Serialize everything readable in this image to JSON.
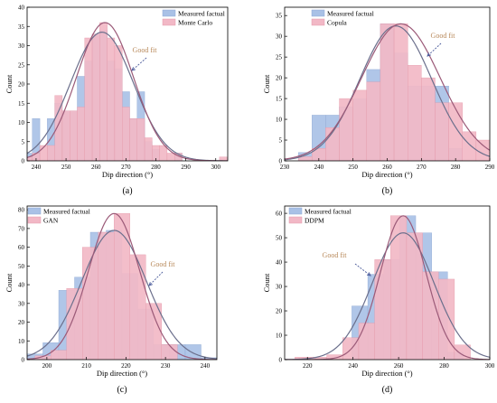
{
  "colors": {
    "measured_fill": "#a9c1e6",
    "measured_stroke": "#8fa8d3",
    "model_fill": "#f2b8c6",
    "model_stroke": "#e59aaa",
    "measured_curve": "#6b6f8c",
    "model_curve": "#9b5a78",
    "annotation": "#b8895a",
    "arrow": "#4a5a9a",
    "axis": "#000000"
  },
  "chart_data": [
    {
      "type": "bar",
      "panel_label": "(a)",
      "xlabel": "Dip direction (°)",
      "ylabel": "Count",
      "xlim": [
        237,
        304
      ],
      "ylim": [
        0,
        40
      ],
      "xticks": [
        240,
        250,
        260,
        270,
        280,
        290,
        300
      ],
      "yticks": [
        0,
        5,
        10,
        15,
        20,
        25,
        30,
        35,
        40
      ],
      "bin_width": 2.5,
      "series": [
        {
          "name": "Measured factual",
          "role": "measured",
          "x": [
            237.5,
            240,
            242.5,
            245,
            247.5,
            250,
            252.5,
            255,
            257.5,
            260,
            262.5,
            265,
            267.5,
            270,
            272.5,
            275,
            277.5,
            280,
            282.5,
            285,
            287.5,
            290,
            292.5,
            295,
            297.5,
            300,
            302.5
          ],
          "values": [
            2,
            11,
            0,
            11,
            15,
            13,
            13,
            22,
            26,
            33,
            34,
            26,
            24,
            18,
            11,
            18,
            5,
            3,
            0,
            0,
            2,
            0,
            0,
            0,
            0,
            0,
            0
          ]
        },
        {
          "name": "Monte Carlo",
          "role": "model",
          "x": [
            237.5,
            240,
            242.5,
            245,
            247.5,
            250,
            252.5,
            255,
            257.5,
            260,
            262.5,
            265,
            267.5,
            270,
            272.5,
            275,
            277.5,
            280,
            282.5,
            285,
            287.5,
            290,
            292.5,
            295,
            297.5,
            300,
            302.5
          ],
          "values": [
            1,
            2,
            4,
            4,
            17,
            13,
            13,
            14,
            32,
            33,
            36,
            32,
            30,
            14,
            11,
            11,
            6,
            4,
            4,
            2,
            2,
            0,
            0,
            0,
            0,
            0,
            1
          ]
        }
      ],
      "fit_curves": [
        {
          "role": "measured",
          "mean": 262,
          "sd": 10.5,
          "peak": 33.5
        },
        {
          "role": "model",
          "mean": 263,
          "sd": 9.5,
          "peak": 36
        }
      ],
      "annotation": "Good fit"
    },
    {
      "type": "bar",
      "panel_label": "(b)",
      "xlabel": "Dip direction (°)",
      "ylabel": "Count",
      "xlim": [
        230,
        290
      ],
      "ylim": [
        0,
        37
      ],
      "xticks": [
        230,
        240,
        250,
        260,
        270,
        280,
        290
      ],
      "yticks": [
        0,
        5,
        10,
        15,
        20,
        25,
        30,
        35
      ],
      "bin_width": 4,
      "series": [
        {
          "name": "Measured factual",
          "role": "measured",
          "x": [
            236,
            240,
            244,
            248,
            252,
            256,
            260,
            264,
            268,
            272,
            276,
            280,
            284
          ],
          "values": [
            2,
            11,
            11,
            13,
            15,
            22,
            33,
            26,
            18,
            18,
            18,
            3,
            0
          ]
        },
        {
          "name": "Copula",
          "role": "model",
          "x": [
            236,
            240,
            244,
            248,
            252,
            256,
            260,
            264,
            268,
            272,
            276,
            280,
            284,
            288
          ],
          "values": [
            1,
            3,
            8,
            15,
            17,
            19,
            33,
            33,
            23,
            20,
            14,
            14,
            7,
            5
          ]
        }
      ],
      "fit_curves": [
        {
          "role": "measured",
          "mean": 262.5,
          "sd": 10.5,
          "peak": 32.5
        },
        {
          "role": "model",
          "mean": 264,
          "sd": 11.5,
          "peak": 33
        }
      ],
      "annotation": "Good fit"
    },
    {
      "type": "bar",
      "panel_label": "(c)",
      "xlabel": "Dip direction (°)",
      "ylabel": "Count",
      "xlim": [
        195,
        243
      ],
      "ylim": [
        0,
        82
      ],
      "xticks": [
        200,
        210,
        220,
        230,
        240
      ],
      "yticks": [
        0,
        10,
        20,
        30,
        40,
        50,
        60,
        70,
        80
      ],
      "bin_width": 4,
      "series": [
        {
          "name": "Measured factual",
          "role": "measured",
          "x": [
            197,
            201,
            205,
            209,
            213,
            217,
            221,
            225,
            229,
            233,
            237,
            241
          ],
          "values": [
            3,
            9,
            37,
            44,
            68,
            69,
            46,
            27,
            8,
            8,
            8,
            1
          ]
        },
        {
          "name": "GAN",
          "role": "model",
          "x": [
            199,
            203,
            207,
            211,
            215,
            219,
            223,
            227,
            231
          ],
          "values": [
            2,
            5,
            38,
            60,
            68,
            78,
            56,
            30,
            8
          ]
        }
      ],
      "fit_curves": [
        {
          "role": "measured",
          "mean": 217,
          "sd": 8.2,
          "peak": 69
        },
        {
          "role": "model",
          "mean": 217,
          "sd": 6.5,
          "peak": 78
        }
      ],
      "annotation": "Good fit"
    },
    {
      "type": "bar",
      "panel_label": "(d)",
      "xlabel": "Dip direction (°)",
      "ylabel": "Count",
      "xlim": [
        210,
        300
      ],
      "ylim": [
        0,
        63
      ],
      "xticks": [
        220,
        240,
        260,
        280,
        300
      ],
      "yticks": [
        0,
        10,
        20,
        30,
        40,
        50,
        60
      ],
      "bin_width": 7,
      "series": [
        {
          "name": "Measured factual",
          "role": "measured",
          "x": [
            222,
            229,
            236,
            243,
            250,
            257,
            264,
            271,
            278,
            285
          ],
          "values": [
            0,
            0,
            0,
            22,
            35,
            41,
            59,
            52,
            36,
            3
          ]
        },
        {
          "name": "DDPM",
          "role": "model",
          "x": [
            218,
            225,
            232,
            239,
            246,
            253,
            260,
            267,
            274,
            281,
            288
          ],
          "values": [
            1,
            1,
            2,
            9,
            15,
            41,
            59,
            52,
            36,
            33,
            6
          ]
        }
      ],
      "fit_curves": [
        {
          "role": "measured",
          "mean": 262,
          "sd": 13.5,
          "peak": 52
        },
        {
          "role": "model",
          "mean": 262,
          "sd": 10,
          "peak": 59
        }
      ],
      "annotation": "Good fit"
    }
  ]
}
